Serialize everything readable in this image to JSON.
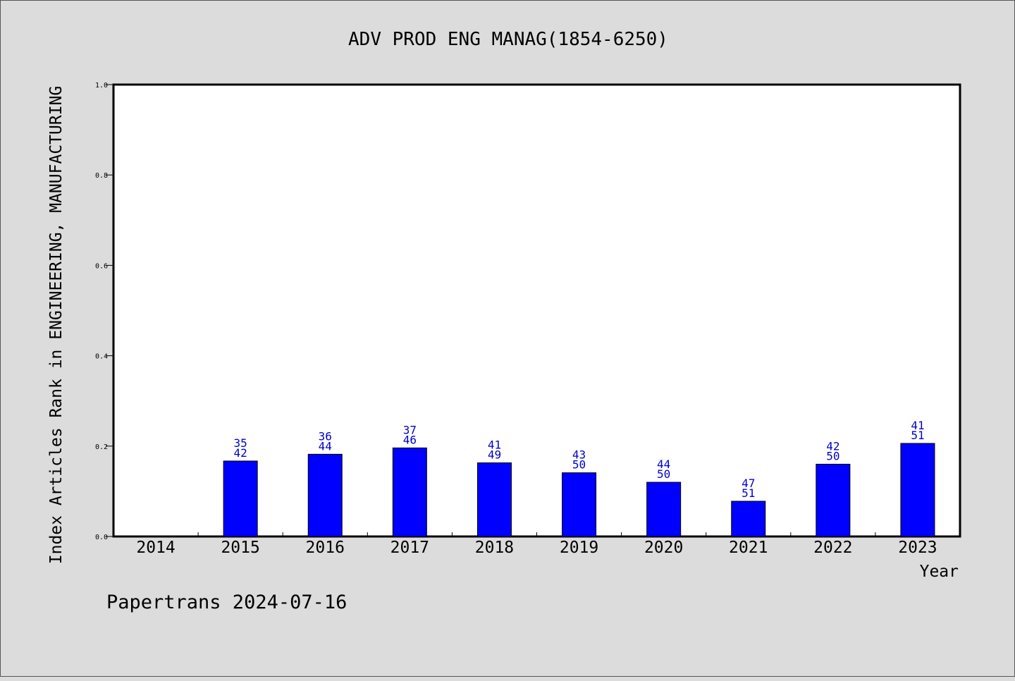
{
  "chart_data": {
    "type": "bar",
    "title": "ADV PROD ENG MANAG(1854-6250)",
    "xlabel": "Year",
    "ylabel": "Index Articles Rank in ENGINEERING, MANUFACTURING",
    "categories": [
      "2014",
      "2015",
      "2016",
      "2017",
      "2018",
      "2019",
      "2020",
      "2021",
      "2022",
      "2023"
    ],
    "values": [
      null,
      0.167,
      0.182,
      0.196,
      0.163,
      0.141,
      0.12,
      0.078,
      0.16,
      0.206
    ],
    "label_top": [
      "",
      "35",
      "36",
      "37",
      "41",
      "43",
      "44",
      "47",
      "42",
      "41"
    ],
    "label_bottom": [
      "",
      "42",
      "44",
      "46",
      "49",
      "50",
      "50",
      "51",
      "50",
      "51"
    ],
    "ylim": [
      0,
      1.0
    ],
    "yticks": [
      "0.0",
      "0.2",
      "0.4",
      "0.6",
      "0.8",
      "1.0"
    ],
    "grid": false,
    "bar_color": "#0000ff",
    "label_color": "#0000cc"
  },
  "footer": "Papertrans 2024-07-16"
}
